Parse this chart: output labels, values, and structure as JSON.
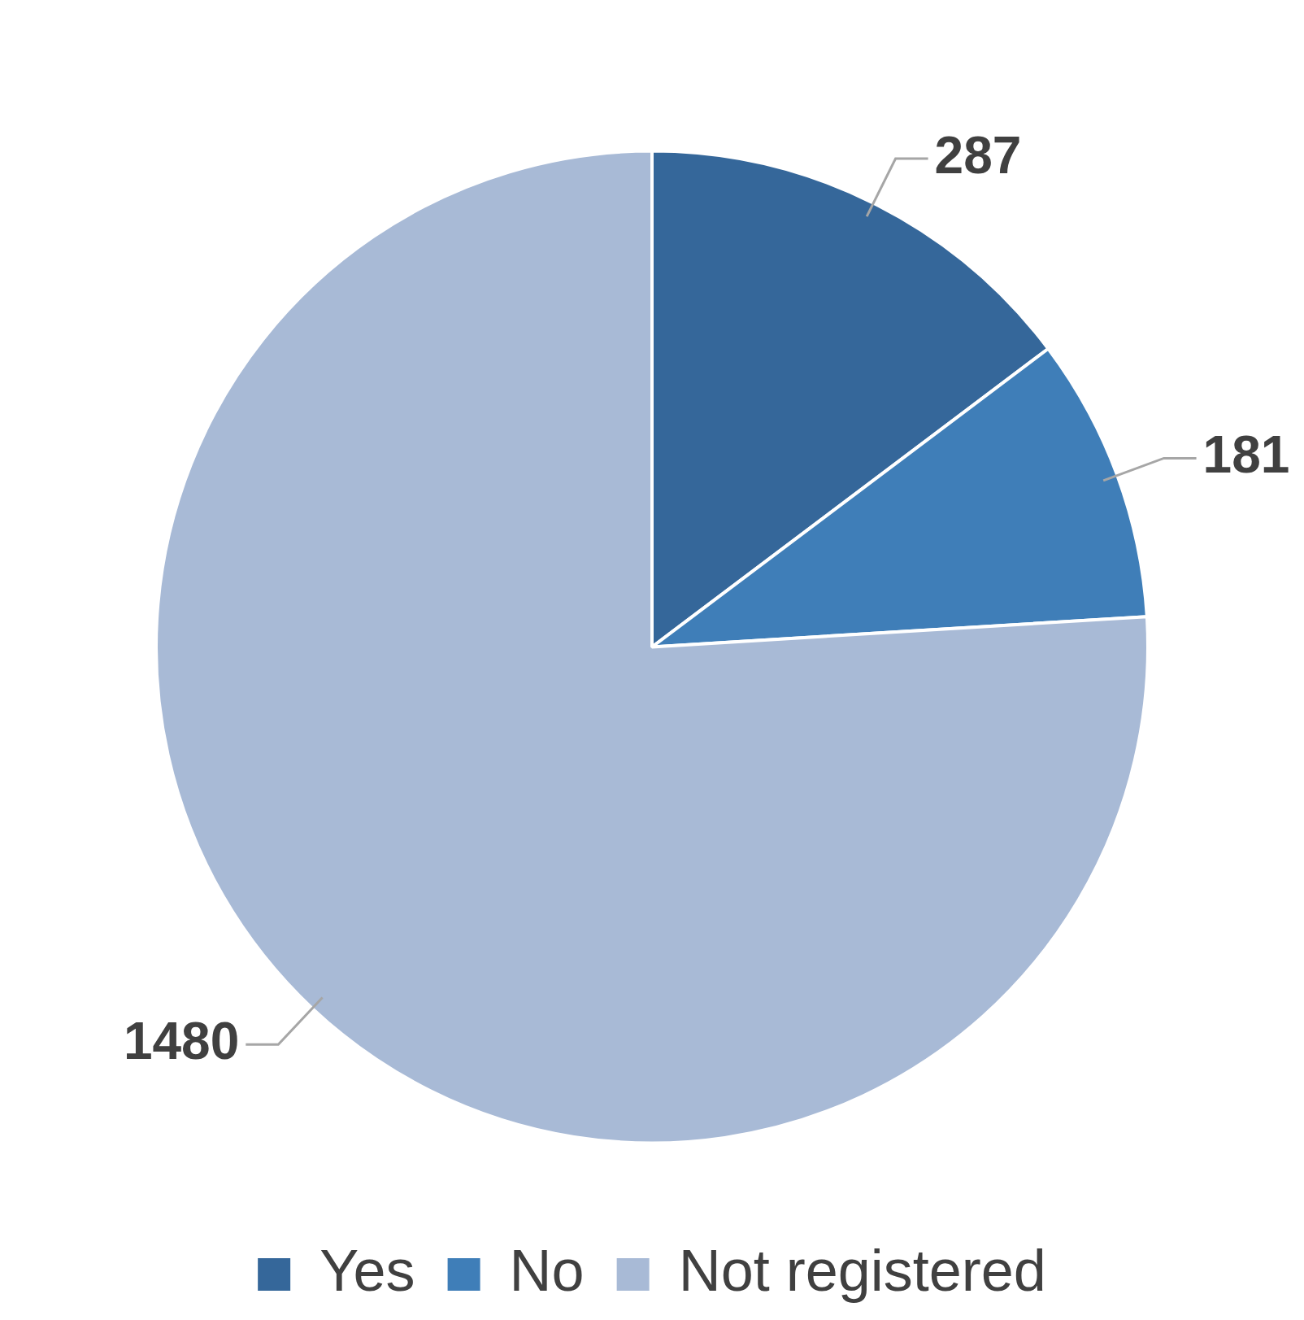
{
  "chart_data": {
    "type": "pie",
    "categories": [
      "Yes",
      "No",
      "Not registered"
    ],
    "values": [
      287,
      181,
      1480
    ],
    "colors": [
      "#35679a",
      "#3f7eb8",
      "#a8bad6"
    ],
    "data_labels": true,
    "legend": "bottom"
  }
}
